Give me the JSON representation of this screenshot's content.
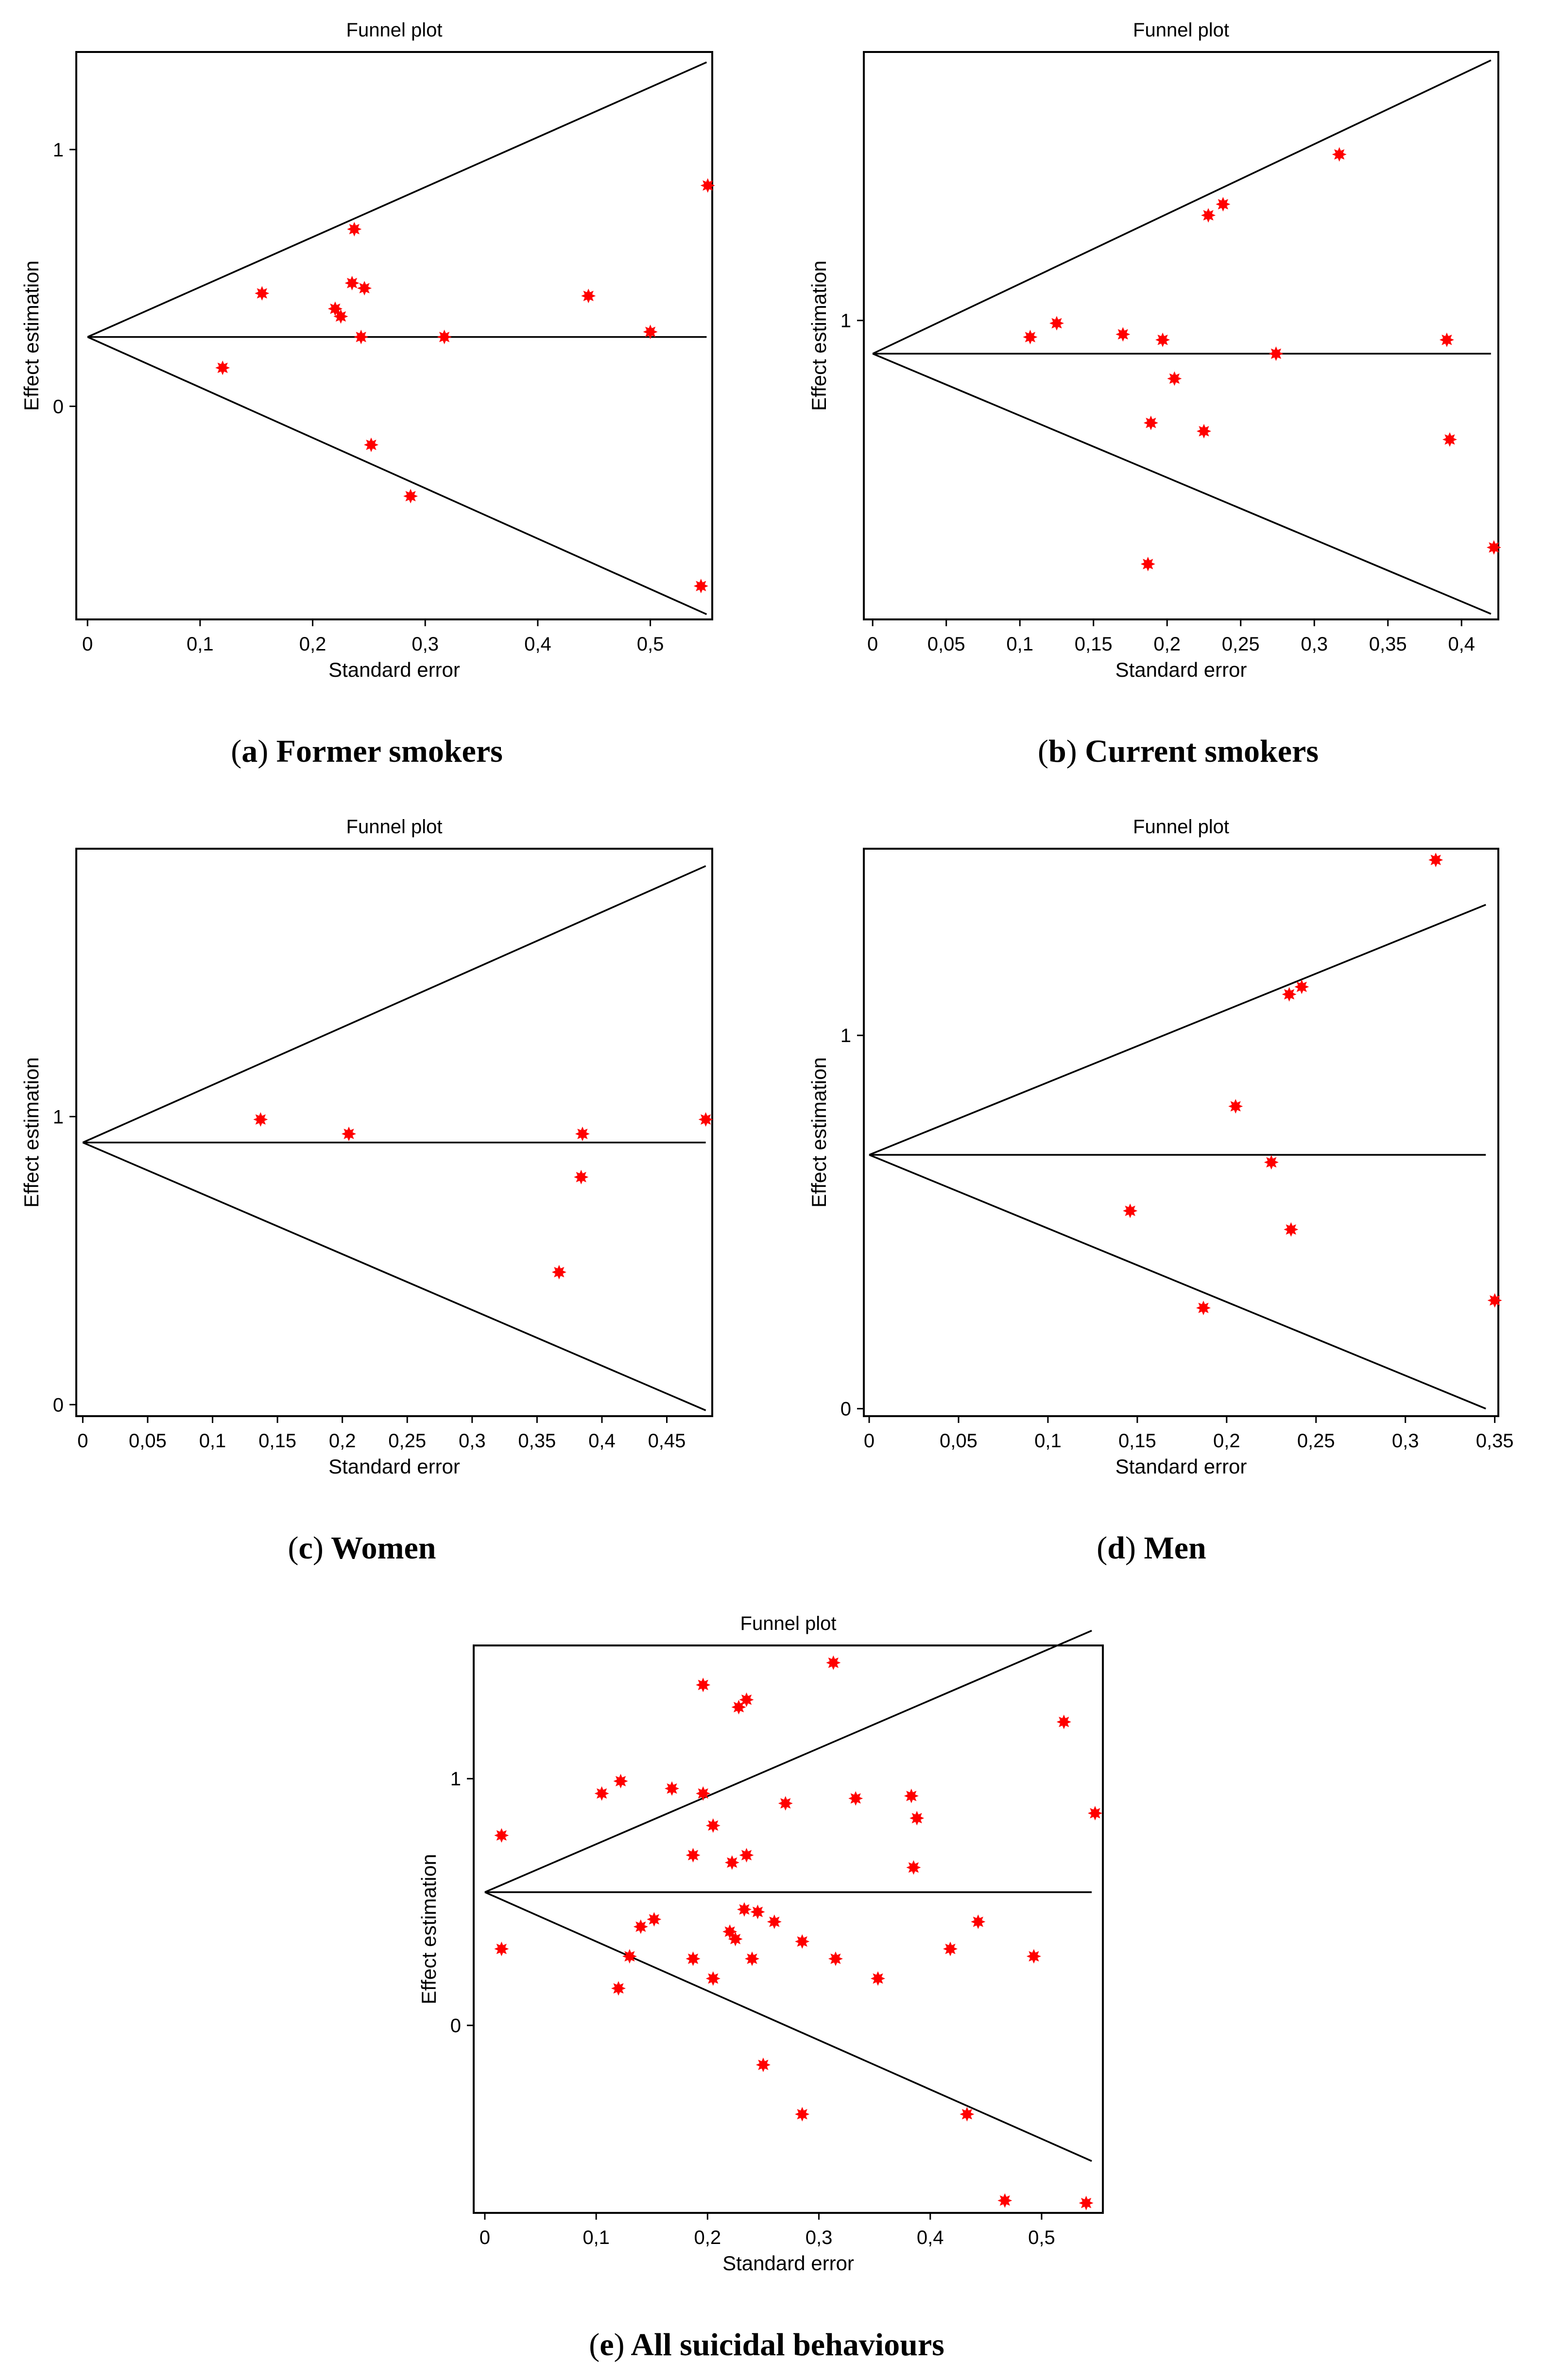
{
  "colors": {
    "point": "#ff0000",
    "line": "#000000",
    "background": "#ffffff"
  },
  "panels": [
    {
      "id": "a",
      "caption_letter": "a",
      "caption_text": " Former smokers",
      "chart_data": {
        "type": "scatter",
        "title": "Funnel plot",
        "xlabel": "Standard error",
        "ylabel": "Effect estimation",
        "xlim": [
          -0.01,
          0.555
        ],
        "ylim": [
          -0.83,
          1.38
        ],
        "xticks": [
          0,
          0.1,
          0.2,
          0.3,
          0.4,
          0.5
        ],
        "xticklabels": [
          "0",
          "0,1",
          "0,2",
          "0,3",
          "0,4",
          "0,5"
        ],
        "yticks": [
          0,
          1
        ],
        "yticklabels": [
          "0",
          "1"
        ],
        "funnel": {
          "center": 0.27,
          "x_max": 0.55,
          "upper_end": 1.34,
          "lower_end": -0.81
        },
        "points": [
          {
            "x": 0.12,
            "y": 0.15
          },
          {
            "x": 0.155,
            "y": 0.44
          },
          {
            "x": 0.22,
            "y": 0.38
          },
          {
            "x": 0.225,
            "y": 0.35
          },
          {
            "x": 0.235,
            "y": 0.48
          },
          {
            "x": 0.237,
            "y": 0.69
          },
          {
            "x": 0.243,
            "y": 0.27
          },
          {
            "x": 0.246,
            "y": 0.46
          },
          {
            "x": 0.252,
            "y": -0.15
          },
          {
            "x": 0.287,
            "y": -0.35
          },
          {
            "x": 0.317,
            "y": 0.27
          },
          {
            "x": 0.445,
            "y": 0.43
          },
          {
            "x": 0.5,
            "y": 0.29
          },
          {
            "x": 0.545,
            "y": -0.7
          },
          {
            "x": 0.551,
            "y": 0.86
          }
        ]
      }
    },
    {
      "id": "b",
      "caption_letter": "b",
      "caption_text": " Current smokers",
      "chart_data": {
        "type": "scatter",
        "title": "Funnel plot",
        "xlabel": "Standard error",
        "ylabel": "Effect estimation",
        "xlim": [
          -0.006,
          0.425
        ],
        "ylim": [
          -0.08,
          1.97
        ],
        "xticks": [
          0,
          0.05,
          0.1,
          0.15,
          0.2,
          0.25,
          0.3,
          0.35,
          0.4
        ],
        "xticklabels": [
          "0",
          "0,05",
          "0,1",
          "0,15",
          "0,2",
          "0,25",
          "0,3",
          "0,35",
          "0,4"
        ],
        "yticks": [
          1
        ],
        "yticklabels": [
          "1"
        ],
        "funnel": {
          "center": 0.88,
          "x_max": 0.42,
          "upper_end": 1.94,
          "lower_end": -0.06
        },
        "points": [
          {
            "x": 0.107,
            "y": 0.94
          },
          {
            "x": 0.125,
            "y": 0.99
          },
          {
            "x": 0.17,
            "y": 0.95
          },
          {
            "x": 0.187,
            "y": 0.12
          },
          {
            "x": 0.189,
            "y": 0.63
          },
          {
            "x": 0.197,
            "y": 0.93
          },
          {
            "x": 0.205,
            "y": 0.79
          },
          {
            "x": 0.225,
            "y": 0.6
          },
          {
            "x": 0.228,
            "y": 1.38
          },
          {
            "x": 0.238,
            "y": 1.42
          },
          {
            "x": 0.274,
            "y": 0.88
          },
          {
            "x": 0.317,
            "y": 1.6
          },
          {
            "x": 0.39,
            "y": 0.93
          },
          {
            "x": 0.392,
            "y": 0.57
          },
          {
            "x": 0.422,
            "y": 0.18
          }
        ]
      }
    },
    {
      "id": "c",
      "caption_letter": "c",
      "caption_text": " Women",
      "chart_data": {
        "type": "scatter",
        "title": "Funnel plot",
        "xlabel": "Standard error",
        "ylabel": "Effect estimation",
        "xlim": [
          -0.005,
          0.485
        ],
        "ylim": [
          -0.04,
          1.93
        ],
        "xticks": [
          0,
          0.05,
          0.1,
          0.15,
          0.2,
          0.25,
          0.3,
          0.35,
          0.4,
          0.45
        ],
        "xticklabels": [
          "0",
          "0,05",
          "0,1",
          "0,15",
          "0,2",
          "0,25",
          "0,3",
          "0,35",
          "0,4",
          "0,45"
        ],
        "yticks": [
          0,
          1
        ],
        "yticklabels": [
          "0",
          "1"
        ],
        "funnel": {
          "center": 0.91,
          "x_max": 0.48,
          "upper_end": 1.87,
          "lower_end": -0.02
        },
        "points": [
          {
            "x": 0.137,
            "y": 0.99
          },
          {
            "x": 0.205,
            "y": 0.94
          },
          {
            "x": 0.367,
            "y": 0.46
          },
          {
            "x": 0.384,
            "y": 0.79
          },
          {
            "x": 0.385,
            "y": 0.94
          },
          {
            "x": 0.48,
            "y": 0.99
          }
        ]
      }
    },
    {
      "id": "d",
      "caption_letter": "d",
      "caption_text": " Men",
      "chart_data": {
        "type": "scatter",
        "title": "Funnel plot",
        "xlabel": "Standard error",
        "ylabel": "Effect estimation",
        "xlim": [
          -0.003,
          0.352
        ],
        "ylim": [
          -0.02,
          1.5
        ],
        "xticks": [
          0,
          0.05,
          0.1,
          0.15,
          0.2,
          0.25,
          0.3,
          0.35
        ],
        "xticklabels": [
          "0",
          "0,05",
          "0,1",
          "0,15",
          "0,2",
          "0,25",
          "0,3",
          "0,35"
        ],
        "yticks": [
          0,
          1
        ],
        "yticklabels": [
          "0",
          "1"
        ],
        "funnel": {
          "center": 0.68,
          "x_max": 0.345,
          "upper_end": 1.35,
          "lower_end": 0.0
        },
        "points": [
          {
            "x": 0.146,
            "y": 0.53
          },
          {
            "x": 0.187,
            "y": 0.27
          },
          {
            "x": 0.205,
            "y": 0.81
          },
          {
            "x": 0.225,
            "y": 0.66
          },
          {
            "x": 0.235,
            "y": 1.11
          },
          {
            "x": 0.236,
            "y": 0.48
          },
          {
            "x": 0.242,
            "y": 1.13
          },
          {
            "x": 0.317,
            "y": 1.47
          },
          {
            "x": 0.35,
            "y": 0.29
          }
        ]
      }
    },
    {
      "id": "e",
      "caption_letter": "e",
      "caption_text": " All suicidal behaviours",
      "chart_data": {
        "type": "scatter",
        "title": "Funnel plot",
        "xlabel": "Standard error",
        "ylabel": "Effect estimation",
        "xlim": [
          -0.01,
          0.555
        ],
        "ylim": [
          -0.76,
          1.54
        ],
        "xticks": [
          0,
          0.1,
          0.2,
          0.3,
          0.4,
          0.5
        ],
        "xticklabels": [
          "0",
          "0,1",
          "0,2",
          "0,3",
          "0,4",
          "0,5"
        ],
        "yticks": [
          0,
          1
        ],
        "yticklabels": [
          "0",
          "1"
        ],
        "funnel": {
          "center": 0.54,
          "x_max": 0.545,
          "upper_end": 1.6,
          "lower_end": -0.55
        },
        "points": [
          {
            "x": 0.015,
            "y": 0.77
          },
          {
            "x": 0.015,
            "y": 0.31
          },
          {
            "x": 0.105,
            "y": 0.94
          },
          {
            "x": 0.122,
            "y": 0.99
          },
          {
            "x": 0.12,
            "y": 0.15
          },
          {
            "x": 0.13,
            "y": 0.28
          },
          {
            "x": 0.14,
            "y": 0.4
          },
          {
            "x": 0.152,
            "y": 0.43
          },
          {
            "x": 0.168,
            "y": 0.96
          },
          {
            "x": 0.187,
            "y": 0.69
          },
          {
            "x": 0.187,
            "y": 0.27
          },
          {
            "x": 0.196,
            "y": 1.38
          },
          {
            "x": 0.196,
            "y": 0.94
          },
          {
            "x": 0.205,
            "y": 0.81
          },
          {
            "x": 0.205,
            "y": 0.19
          },
          {
            "x": 0.22,
            "y": 0.38
          },
          {
            "x": 0.225,
            "y": 0.35
          },
          {
            "x": 0.222,
            "y": 0.66
          },
          {
            "x": 0.228,
            "y": 1.29
          },
          {
            "x": 0.235,
            "y": 1.32
          },
          {
            "x": 0.235,
            "y": 0.69
          },
          {
            "x": 0.233,
            "y": 0.47
          },
          {
            "x": 0.24,
            "y": 0.27
          },
          {
            "x": 0.245,
            "y": 0.46
          },
          {
            "x": 0.25,
            "y": -0.16
          },
          {
            "x": 0.26,
            "y": 0.42
          },
          {
            "x": 0.27,
            "y": 0.9
          },
          {
            "x": 0.285,
            "y": 0.34
          },
          {
            "x": 0.285,
            "y": -0.36
          },
          {
            "x": 0.313,
            "y": 1.47
          },
          {
            "x": 0.315,
            "y": 0.27
          },
          {
            "x": 0.333,
            "y": 0.92
          },
          {
            "x": 0.353,
            "y": 0.19
          },
          {
            "x": 0.383,
            "y": 0.93
          },
          {
            "x": 0.388,
            "y": 0.84
          },
          {
            "x": 0.385,
            "y": 0.64
          },
          {
            "x": 0.418,
            "y": 0.31
          },
          {
            "x": 0.433,
            "y": -0.36
          },
          {
            "x": 0.443,
            "y": 0.42
          },
          {
            "x": 0.467,
            "y": -0.71
          },
          {
            "x": 0.493,
            "y": 0.28
          },
          {
            "x": 0.52,
            "y": 1.23
          },
          {
            "x": 0.54,
            "y": -0.72
          },
          {
            "x": 0.548,
            "y": 0.86
          }
        ]
      }
    }
  ]
}
